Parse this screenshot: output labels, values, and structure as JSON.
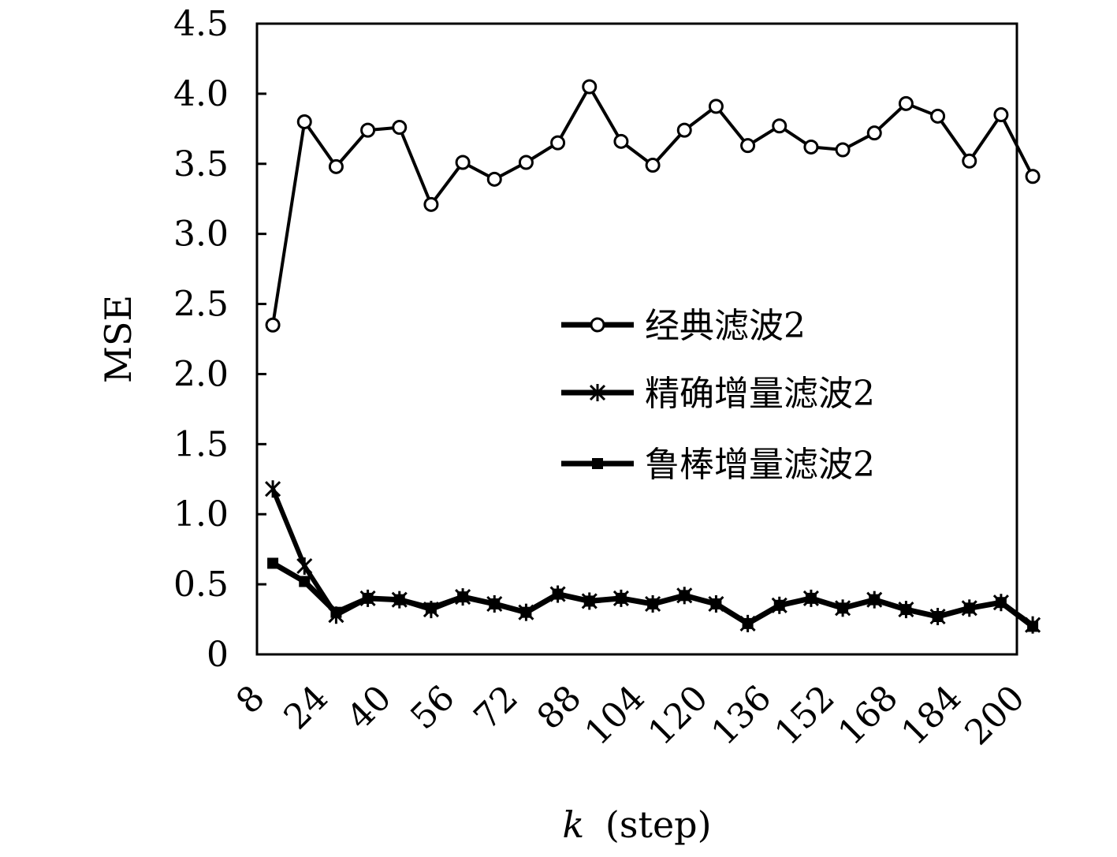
{
  "chart_data": {
    "type": "line",
    "xlabel": "k (step)",
    "xlabel_var": "k",
    "xlabel_unit": "(step)",
    "ylabel": "MSE",
    "x_ticks": [
      8,
      24,
      40,
      56,
      72,
      88,
      104,
      120,
      136,
      152,
      168,
      184,
      200
    ],
    "y_ticks": [
      "0",
      "0.5",
      "1.0",
      "1.5",
      "2.0",
      "2.5",
      "3.0",
      "3.5",
      "4.0",
      "4.5"
    ],
    "xlim": [
      8,
      200
    ],
    "ylim": [
      0,
      4.5
    ],
    "legend_position": "center-right",
    "x": [
      12,
      20,
      28,
      36,
      44,
      52,
      60,
      68,
      76,
      84,
      92,
      100,
      108,
      116,
      124,
      132,
      140,
      148,
      156,
      164,
      172,
      180,
      188,
      196,
      204
    ],
    "series": [
      {
        "name": "经典滤波2",
        "marker": "circle",
        "values": [
          2.35,
          3.8,
          3.48,
          3.74,
          3.76,
          3.21,
          3.51,
          3.39,
          3.51,
          3.65,
          4.05,
          3.66,
          3.49,
          3.74,
          3.91,
          3.63,
          3.77,
          3.62,
          3.6,
          3.72,
          3.93,
          3.84,
          3.52,
          3.85,
          3.41
        ]
      },
      {
        "name": "精确增量滤波2",
        "marker": "asterisk",
        "values": [
          1.18,
          0.63,
          0.28,
          0.4,
          0.39,
          0.32,
          0.41,
          0.36,
          0.3,
          0.43,
          0.38,
          0.4,
          0.36,
          0.42,
          0.36,
          0.22,
          0.35,
          0.4,
          0.33,
          0.39,
          0.32,
          0.27,
          0.33,
          0.37,
          0.21
        ]
      },
      {
        "name": "鲁棒增量滤波2",
        "marker": "square",
        "values": [
          0.65,
          0.52,
          0.3,
          0.4,
          0.39,
          0.33,
          0.41,
          0.36,
          0.3,
          0.43,
          0.38,
          0.4,
          0.36,
          0.42,
          0.36,
          0.22,
          0.35,
          0.4,
          0.33,
          0.39,
          0.32,
          0.27,
          0.33,
          0.37,
          0.2
        ]
      }
    ]
  }
}
